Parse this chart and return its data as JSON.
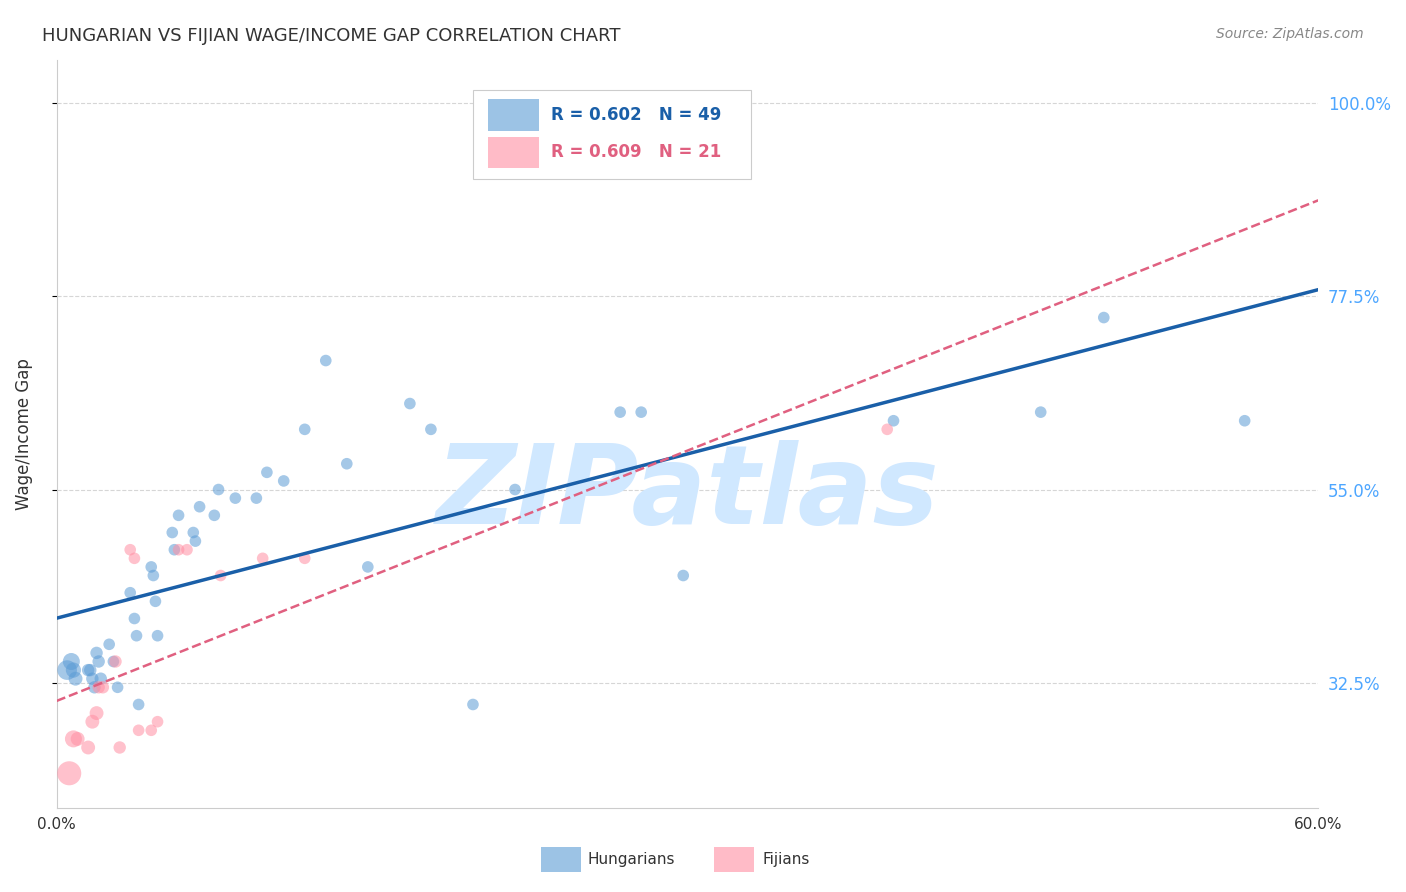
{
  "title": "HUNGARIAN VS FIJIAN WAGE/INCOME GAP CORRELATION CHART",
  "source": "Source: ZipAtlas.com",
  "ylabel": "Wage/Income Gap",
  "xlim": [
    0.0,
    0.6
  ],
  "ylim": [
    0.18,
    1.05
  ],
  "yticks": [
    0.325,
    0.55,
    0.775,
    1.0
  ],
  "ytick_labels": [
    "32.5%",
    "55.0%",
    "77.5%",
    "100.0%"
  ],
  "xticks": [
    0.0,
    0.1,
    0.2,
    0.3,
    0.4,
    0.5,
    0.6
  ],
  "xtick_labels": [
    "0.0%",
    "",
    "",
    "",
    "",
    "",
    "60.0%"
  ],
  "bg_color": "#ffffff",
  "grid_color": "#cccccc",
  "title_color": "#333333",
  "axis_label_color": "#333333",
  "right_tick_color": "#4da6ff",
  "watermark_text": "ZIPatlas",
  "watermark_color": "#d0e8ff",
  "legend_label1": "Hungarians",
  "legend_label2": "Fijians",
  "blue_color": "#5b9bd5",
  "pink_color": "#ff8fa3",
  "blue_line_color": "#1a5fa8",
  "pink_line_color": "#e06080",
  "hungarian_x": [
    0.005,
    0.007,
    0.008,
    0.009,
    0.015,
    0.016,
    0.017,
    0.018,
    0.019,
    0.02,
    0.021,
    0.025,
    0.027,
    0.029,
    0.035,
    0.037,
    0.038,
    0.039,
    0.045,
    0.046,
    0.047,
    0.048,
    0.055,
    0.056,
    0.058,
    0.065,
    0.066,
    0.068,
    0.075,
    0.077,
    0.085,
    0.095,
    0.1,
    0.108,
    0.118,
    0.128,
    0.138,
    0.148,
    0.168,
    0.178,
    0.198,
    0.218,
    0.268,
    0.278,
    0.298,
    0.398,
    0.468,
    0.498,
    0.565
  ],
  "hungarian_y": [
    0.34,
    0.35,
    0.34,
    0.33,
    0.34,
    0.34,
    0.33,
    0.32,
    0.36,
    0.35,
    0.33,
    0.37,
    0.35,
    0.32,
    0.43,
    0.4,
    0.38,
    0.3,
    0.46,
    0.45,
    0.42,
    0.38,
    0.5,
    0.48,
    0.52,
    0.5,
    0.49,
    0.53,
    0.52,
    0.55,
    0.54,
    0.54,
    0.57,
    0.56,
    0.62,
    0.7,
    0.58,
    0.46,
    0.65,
    0.62,
    0.3,
    0.55,
    0.64,
    0.64,
    0.45,
    0.63,
    0.64,
    0.75,
    0.63
  ],
  "fijian_x": [
    0.006,
    0.008,
    0.01,
    0.015,
    0.017,
    0.019,
    0.02,
    0.022,
    0.028,
    0.03,
    0.035,
    0.037,
    0.039,
    0.045,
    0.048,
    0.058,
    0.062,
    0.078,
    0.098,
    0.118,
    0.395
  ],
  "fijian_y": [
    0.22,
    0.26,
    0.26,
    0.25,
    0.28,
    0.29,
    0.32,
    0.32,
    0.35,
    0.25,
    0.48,
    0.47,
    0.27,
    0.27,
    0.28,
    0.48,
    0.48,
    0.45,
    0.47,
    0.47,
    0.62
  ],
  "hungarian_sizes": [
    200,
    150,
    120,
    100,
    80,
    80,
    80,
    80,
    80,
    80,
    80,
    70,
    70,
    70,
    70,
    70,
    70,
    70,
    70,
    70,
    70,
    70,
    70,
    70,
    70,
    70,
    70,
    70,
    70,
    70,
    70,
    70,
    70,
    70,
    70,
    70,
    70,
    70,
    70,
    70,
    70,
    70,
    70,
    70,
    70,
    70,
    70,
    70,
    70
  ],
  "fijian_sizes": [
    300,
    150,
    100,
    100,
    100,
    100,
    80,
    80,
    80,
    80,
    70,
    70,
    70,
    70,
    70,
    70,
    70,
    70,
    70,
    70,
    70
  ]
}
